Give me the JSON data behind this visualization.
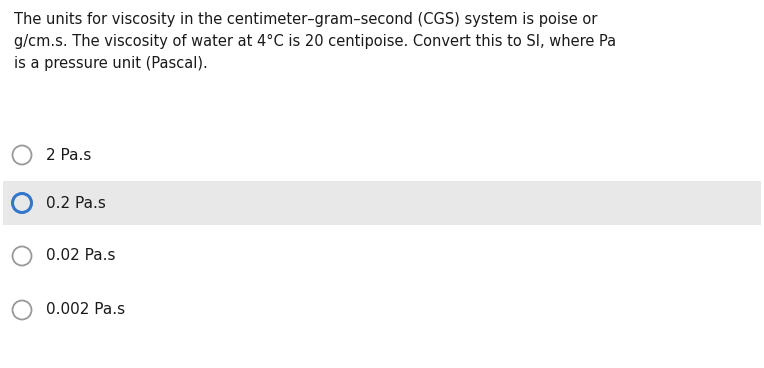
{
  "question_text_lines": [
    "The units for viscosity in the centimeter–gram–second (CGS) system is poise or",
    "g/cm.s. The viscosity of water at 4°C is 20 centipoise. Convert this to SI, where Pa",
    "is a pressure unit (Pascal)."
  ],
  "options": [
    {
      "label": "2 Pa.s",
      "selected": false,
      "highlighted": false
    },
    {
      "label": "0.2 Pa.s",
      "selected": true,
      "highlighted": true
    },
    {
      "label": "0.02 Pa.s",
      "selected": false,
      "highlighted": false
    },
    {
      "label": "0.002 Pa.s",
      "selected": false,
      "highlighted": false
    }
  ],
  "bg_color": "#ffffff",
  "highlight_color": "#e8e8e8",
  "text_color": "#1a1a1a",
  "circle_default_color": "#999999",
  "circle_selected_color": "#3377cc",
  "font_size_question": 10.5,
  "font_size_option": 11.0,
  "fig_width": 7.64,
  "fig_height": 3.68,
  "dpi": 100
}
